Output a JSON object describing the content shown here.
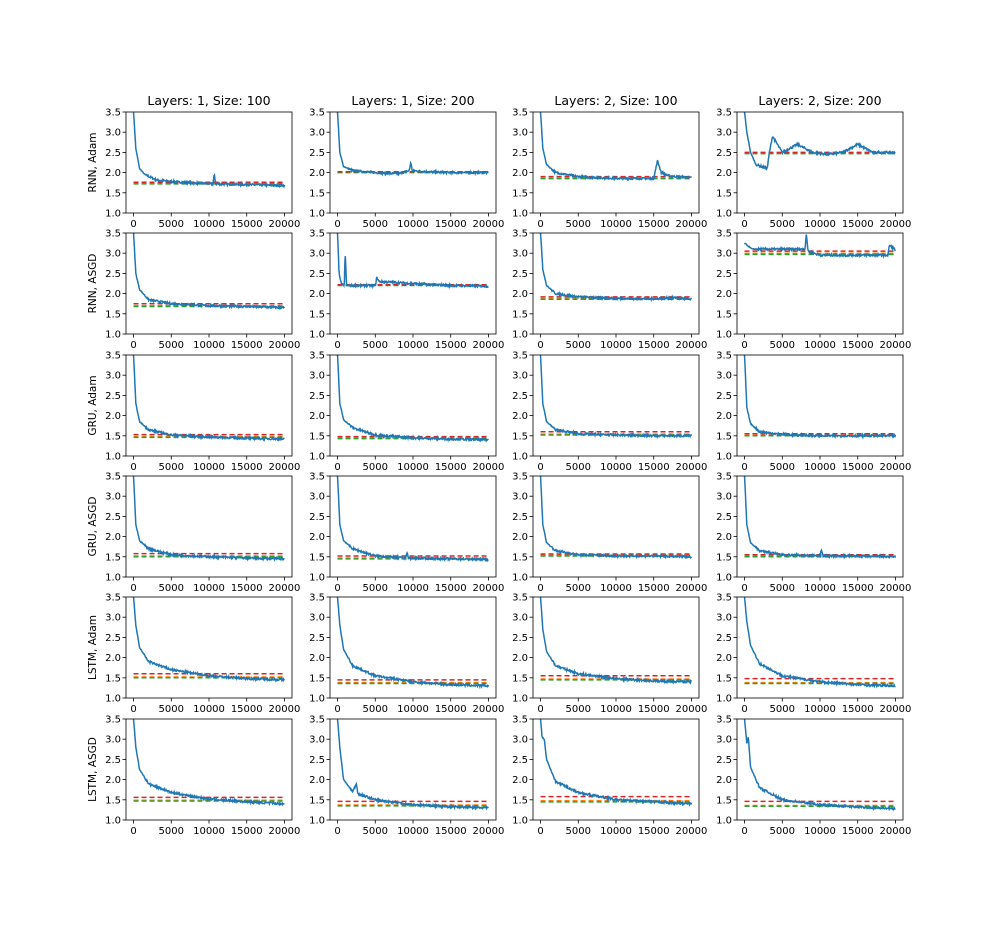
{
  "figure": {
    "columns": [
      "Layers: 1, Size: 100",
      "Layers: 1, Size: 200",
      "Layers: 2, Size: 100",
      "Layers: 2, Size: 200"
    ],
    "rows": [
      "RNN, Adam",
      "RNN, ASGD",
      "GRU, Adam",
      "GRU, ASGD",
      "LSTM, Adam",
      "LSTM, ASGD"
    ]
  },
  "colors": {
    "loss_curve": "#1f77b4",
    "dashed_red": "#d62728",
    "dashed_green": "#2ca02c",
    "dashed_orange": "#ff7f0e"
  },
  "chart_data": {
    "type": "line",
    "layout": "6x4 grid of subplots",
    "x_ticks": [
      "0",
      "5000",
      "10000",
      "15000",
      "20000"
    ],
    "xlim": [
      -1000,
      21000
    ],
    "y_ticks": [
      "1.0",
      "1.5",
      "2.0",
      "2.5",
      "3.0",
      "3.5"
    ],
    "ylim": [
      1.0,
      3.5
    ],
    "grid": false,
    "legend": "none",
    "series_styles": {
      "curve": "solid blue line",
      "red": "dashed red horizontal line",
      "green": "dashed green horizontal line",
      "orange": "dashed orange horizontal line"
    },
    "panels": [
      {
        "row": "RNN, Adam",
        "column": "Layers: 1, Size: 100",
        "curve": [
          [
            0,
            3.5
          ],
          [
            300,
            2.6
          ],
          [
            800,
            2.1
          ],
          [
            1500,
            1.95
          ],
          [
            3000,
            1.82
          ],
          [
            5000,
            1.78
          ],
          [
            8000,
            1.74
          ],
          [
            10500,
            1.72
          ],
          [
            10700,
            1.95
          ],
          [
            10900,
            1.72
          ],
          [
            15000,
            1.7
          ],
          [
            20000,
            1.68
          ]
        ],
        "red": 1.76,
        "green": 1.72,
        "orange": 1.73
      },
      {
        "row": "RNN, Adam",
        "column": "Layers: 1, Size: 200",
        "curve": [
          [
            0,
            3.5
          ],
          [
            300,
            2.5
          ],
          [
            800,
            2.15
          ],
          [
            2000,
            2.05
          ],
          [
            5000,
            2.0
          ],
          [
            8000,
            1.97
          ],
          [
            9500,
            2.05
          ],
          [
            9700,
            2.25
          ],
          [
            9900,
            2.05
          ],
          [
            12000,
            2.02
          ],
          [
            15000,
            2.0
          ],
          [
            20000,
            2.0
          ]
        ],
        "red": 2.02,
        "green": 2.0,
        "orange": 2.01
      },
      {
        "row": "RNN, Adam",
        "column": "Layers: 2, Size: 100",
        "curve": [
          [
            0,
            3.5
          ],
          [
            300,
            2.6
          ],
          [
            800,
            2.2
          ],
          [
            2000,
            2.0
          ],
          [
            5000,
            1.9
          ],
          [
            10000,
            1.86
          ],
          [
            15000,
            1.85
          ],
          [
            15500,
            2.3
          ],
          [
            16000,
            2.0
          ],
          [
            17000,
            1.92
          ],
          [
            20000,
            1.87
          ]
        ],
        "red": 1.9,
        "green": 1.85,
        "orange": 1.86
      },
      {
        "row": "RNN, Adam",
        "column": "Layers: 2, Size: 200",
        "curve": [
          [
            0,
            3.5
          ],
          [
            300,
            3.0
          ],
          [
            800,
            2.5
          ],
          [
            1500,
            2.2
          ],
          [
            3000,
            2.1
          ],
          [
            3300,
            2.5
          ],
          [
            3700,
            2.9
          ],
          [
            5000,
            2.5
          ],
          [
            7000,
            2.7
          ],
          [
            9000,
            2.5
          ],
          [
            11000,
            2.45
          ],
          [
            13000,
            2.5
          ],
          [
            15000,
            2.7
          ],
          [
            17000,
            2.5
          ],
          [
            20000,
            2.5
          ]
        ],
        "red": 2.5,
        "green": 2.47,
        "orange": 2.48
      },
      {
        "row": "RNN, ASGD",
        "column": "Layers: 1, Size: 100",
        "curve": [
          [
            0,
            3.5
          ],
          [
            300,
            2.5
          ],
          [
            800,
            2.1
          ],
          [
            2000,
            1.85
          ],
          [
            5000,
            1.75
          ],
          [
            10000,
            1.7
          ],
          [
            15000,
            1.68
          ],
          [
            20000,
            1.65
          ]
        ],
        "red": 1.75,
        "green": 1.68,
        "orange": 1.7
      },
      {
        "row": "RNN, ASGD",
        "column": "Layers: 1, Size: 200",
        "curve": [
          [
            0,
            3.5
          ],
          [
            200,
            2.5
          ],
          [
            500,
            2.25
          ],
          [
            900,
            2.2
          ],
          [
            1000,
            3.05
          ],
          [
            1200,
            2.2
          ],
          [
            5000,
            2.2
          ],
          [
            5200,
            2.4
          ],
          [
            5500,
            2.3
          ],
          [
            10000,
            2.25
          ],
          [
            15000,
            2.2
          ],
          [
            20000,
            2.18
          ]
        ],
        "red": 2.22,
        "green": 2.2,
        "orange": 2.21
      },
      {
        "row": "RNN, ASGD",
        "column": "Layers: 2, Size: 100",
        "curve": [
          [
            0,
            3.5
          ],
          [
            300,
            2.6
          ],
          [
            800,
            2.2
          ],
          [
            2000,
            2.0
          ],
          [
            5000,
            1.92
          ],
          [
            10000,
            1.88
          ],
          [
            15000,
            1.87
          ],
          [
            18000,
            1.9
          ],
          [
            20000,
            1.85
          ]
        ],
        "red": 1.92,
        "green": 1.86,
        "orange": 1.88
      },
      {
        "row": "RNN, ASGD",
        "column": "Layers: 2, Size: 200",
        "curve": [
          [
            0,
            3.25
          ],
          [
            1000,
            3.1
          ],
          [
            3000,
            3.1
          ],
          [
            5000,
            3.1
          ],
          [
            8000,
            3.1
          ],
          [
            8200,
            3.5
          ],
          [
            8400,
            3.05
          ],
          [
            10000,
            2.95
          ],
          [
            15000,
            2.95
          ],
          [
            19000,
            2.95
          ],
          [
            19200,
            3.2
          ],
          [
            20000,
            3.08
          ]
        ],
        "red": 3.05,
        "green": 2.97,
        "orange": 3.0
      },
      {
        "row": "GRU, Adam",
        "column": "Layers: 1, Size: 100",
        "curve": [
          [
            0,
            3.5
          ],
          [
            300,
            2.3
          ],
          [
            800,
            1.85
          ],
          [
            2000,
            1.65
          ],
          [
            5000,
            1.52
          ],
          [
            10000,
            1.47
          ],
          [
            15000,
            1.44
          ],
          [
            20000,
            1.42
          ]
        ],
        "red": 1.53,
        "green": 1.46,
        "orange": 1.48
      },
      {
        "row": "GRU, Adam",
        "column": "Layers: 1, Size: 200",
        "curve": [
          [
            0,
            3.5
          ],
          [
            300,
            2.3
          ],
          [
            800,
            1.9
          ],
          [
            2000,
            1.7
          ],
          [
            5000,
            1.52
          ],
          [
            10000,
            1.45
          ],
          [
            15000,
            1.42
          ],
          [
            20000,
            1.4
          ]
        ],
        "red": 1.48,
        "green": 1.43,
        "orange": 1.45
      },
      {
        "row": "GRU, Adam",
        "column": "Layers: 2, Size: 100",
        "curve": [
          [
            0,
            3.5
          ],
          [
            300,
            2.3
          ],
          [
            800,
            1.85
          ],
          [
            2000,
            1.65
          ],
          [
            5000,
            1.55
          ],
          [
            10000,
            1.52
          ],
          [
            15000,
            1.5
          ],
          [
            20000,
            1.5
          ]
        ],
        "red": 1.6,
        "green": 1.52,
        "orange": 1.54
      },
      {
        "row": "GRU, Adam",
        "column": "Layers: 2, Size: 200",
        "curve": [
          [
            0,
            3.5
          ],
          [
            300,
            2.2
          ],
          [
            800,
            1.8
          ],
          [
            2000,
            1.6
          ],
          [
            5000,
            1.53
          ],
          [
            10000,
            1.5
          ],
          [
            15000,
            1.5
          ],
          [
            20000,
            1.5
          ]
        ],
        "red": 1.55,
        "green": 1.5,
        "orange": 1.51
      },
      {
        "row": "GRU, ASGD",
        "column": "Layers: 1, Size: 100",
        "curve": [
          [
            0,
            3.5
          ],
          [
            300,
            2.3
          ],
          [
            800,
            1.9
          ],
          [
            2000,
            1.7
          ],
          [
            5000,
            1.55
          ],
          [
            10000,
            1.5
          ],
          [
            15000,
            1.47
          ],
          [
            20000,
            1.45
          ]
        ],
        "red": 1.58,
        "green": 1.5,
        "orange": 1.52
      },
      {
        "row": "GRU, ASGD",
        "column": "Layers: 1, Size: 200",
        "curve": [
          [
            0,
            3.5
          ],
          [
            300,
            2.3
          ],
          [
            800,
            1.9
          ],
          [
            2000,
            1.7
          ],
          [
            5000,
            1.52
          ],
          [
            9000,
            1.47
          ],
          [
            9200,
            1.62
          ],
          [
            9400,
            1.47
          ],
          [
            15000,
            1.45
          ],
          [
            20000,
            1.43
          ]
        ],
        "red": 1.52,
        "green": 1.45,
        "orange": 1.47
      },
      {
        "row": "GRU, ASGD",
        "column": "Layers: 2, Size: 100",
        "curve": [
          [
            0,
            3.5
          ],
          [
            300,
            2.3
          ],
          [
            800,
            1.85
          ],
          [
            2000,
            1.65
          ],
          [
            5000,
            1.55
          ],
          [
            10000,
            1.52
          ],
          [
            15000,
            1.52
          ],
          [
            20000,
            1.5
          ]
        ],
        "red": 1.57,
        "green": 1.52,
        "orange": 1.54
      },
      {
        "row": "GRU, ASGD",
        "column": "Layers: 2, Size: 200",
        "curve": [
          [
            0,
            3.5
          ],
          [
            300,
            2.3
          ],
          [
            800,
            1.85
          ],
          [
            2000,
            1.65
          ],
          [
            5000,
            1.55
          ],
          [
            10000,
            1.52
          ],
          [
            10200,
            1.68
          ],
          [
            10400,
            1.52
          ],
          [
            15000,
            1.52
          ],
          [
            20000,
            1.5
          ]
        ],
        "red": 1.55,
        "green": 1.5,
        "orange": 1.52
      },
      {
        "row": "LSTM, Adam",
        "column": "Layers: 1, Size: 100",
        "curve": [
          [
            0,
            3.5
          ],
          [
            300,
            2.8
          ],
          [
            800,
            2.25
          ],
          [
            2000,
            1.9
          ],
          [
            5000,
            1.7
          ],
          [
            10000,
            1.55
          ],
          [
            15000,
            1.48
          ],
          [
            20000,
            1.45
          ]
        ],
        "red": 1.6,
        "green": 1.5,
        "orange": 1.52
      },
      {
        "row": "LSTM, Adam",
        "column": "Layers: 1, Size: 200",
        "curve": [
          [
            0,
            3.5
          ],
          [
            300,
            2.8
          ],
          [
            800,
            2.2
          ],
          [
            2000,
            1.8
          ],
          [
            5000,
            1.55
          ],
          [
            10000,
            1.4
          ],
          [
            15000,
            1.33
          ],
          [
            20000,
            1.3
          ]
        ],
        "red": 1.45,
        "green": 1.36,
        "orange": 1.38
      },
      {
        "row": "LSTM, Adam",
        "column": "Layers: 2, Size: 100",
        "curve": [
          [
            0,
            3.5
          ],
          [
            300,
            2.7
          ],
          [
            800,
            2.15
          ],
          [
            2000,
            1.8
          ],
          [
            5000,
            1.6
          ],
          [
            10000,
            1.48
          ],
          [
            15000,
            1.42
          ],
          [
            20000,
            1.4
          ]
        ],
        "red": 1.55,
        "green": 1.45,
        "orange": 1.47
      },
      {
        "row": "LSTM, Adam",
        "column": "Layers: 2, Size: 200",
        "curve": [
          [
            0,
            3.5
          ],
          [
            300,
            2.9
          ],
          [
            800,
            2.3
          ],
          [
            2000,
            1.85
          ],
          [
            5000,
            1.55
          ],
          [
            10000,
            1.4
          ],
          [
            15000,
            1.33
          ],
          [
            20000,
            1.3
          ]
        ],
        "red": 1.48,
        "green": 1.36,
        "orange": 1.38
      },
      {
        "row": "LSTM, ASGD",
        "column": "Layers: 1, Size: 100",
        "curve": [
          [
            0,
            3.5
          ],
          [
            300,
            2.8
          ],
          [
            800,
            2.25
          ],
          [
            2000,
            1.9
          ],
          [
            5000,
            1.68
          ],
          [
            10000,
            1.52
          ],
          [
            15000,
            1.45
          ],
          [
            20000,
            1.4
          ]
        ],
        "red": 1.56,
        "green": 1.47,
        "orange": 1.49
      },
      {
        "row": "LSTM, ASGD",
        "column": "Layers: 1, Size: 200",
        "curve": [
          [
            0,
            3.5
          ],
          [
            300,
            2.8
          ],
          [
            800,
            2.0
          ],
          [
            2000,
            1.7
          ],
          [
            2500,
            1.9
          ],
          [
            2700,
            1.65
          ],
          [
            5000,
            1.5
          ],
          [
            10000,
            1.38
          ],
          [
            15000,
            1.33
          ],
          [
            20000,
            1.3
          ]
        ],
        "red": 1.46,
        "green": 1.35,
        "orange": 1.37
      },
      {
        "row": "LSTM, ASGD",
        "column": "Layers: 2, Size: 100",
        "curve": [
          [
            0,
            3.5
          ],
          [
            200,
            3.05
          ],
          [
            500,
            3.0
          ],
          [
            800,
            2.5
          ],
          [
            2000,
            1.95
          ],
          [
            5000,
            1.68
          ],
          [
            10000,
            1.5
          ],
          [
            15000,
            1.45
          ],
          [
            20000,
            1.4
          ]
        ],
        "red": 1.58,
        "green": 1.45,
        "orange": 1.48
      },
      {
        "row": "LSTM, ASGD",
        "column": "Layers: 2, Size: 200",
        "curve": [
          [
            0,
            3.5
          ],
          [
            300,
            2.9
          ],
          [
            500,
            3.05
          ],
          [
            800,
            2.3
          ],
          [
            2000,
            1.8
          ],
          [
            5000,
            1.5
          ],
          [
            10000,
            1.38
          ],
          [
            15000,
            1.32
          ],
          [
            20000,
            1.28
          ]
        ],
        "red": 1.46,
        "green": 1.34,
        "orange": 1.36
      }
    ]
  }
}
